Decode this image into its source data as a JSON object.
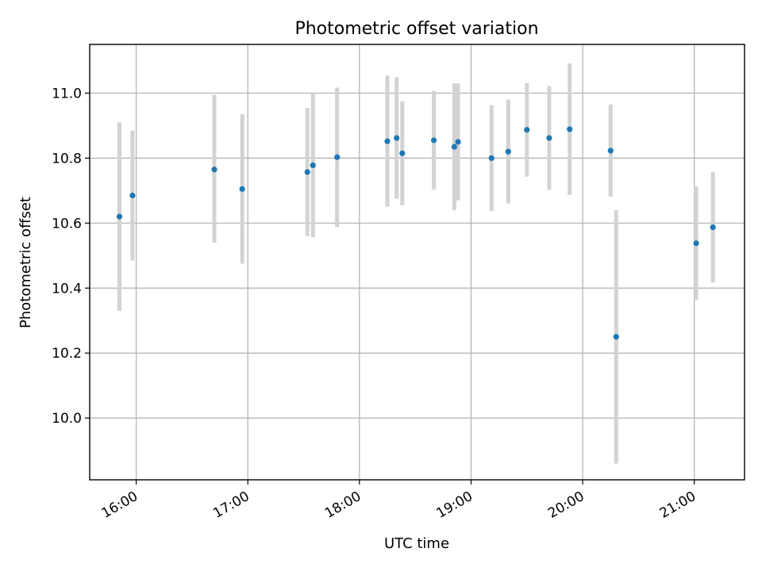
{
  "chart_data": {
    "type": "scatter",
    "title": "Photometric offset variation",
    "xlabel": "UTC time",
    "ylabel": "Photometric offset",
    "x_ticks": [
      "16:00",
      "17:00",
      "18:00",
      "19:00",
      "20:00",
      "21:00"
    ],
    "y_ticks": [
      "10.0",
      "10.2",
      "10.4",
      "10.6",
      "10.8",
      "11.0"
    ],
    "xlim": [
      "15:35",
      "21:27"
    ],
    "ylim": [
      9.81,
      11.15
    ],
    "grid": true,
    "colors": {
      "marker": "#1f77b4",
      "errorbar": "#d3d3d3"
    },
    "series": [
      {
        "points": [
          {
            "x": "15:51",
            "y": 10.62,
            "err_low": 10.33,
            "err_high": 10.91
          },
          {
            "x": "15:58",
            "y": 10.685,
            "err_low": 10.485,
            "err_high": 10.885
          },
          {
            "x": "16:42",
            "y": 10.765,
            "err_low": 10.54,
            "err_high": 10.995
          },
          {
            "x": "16:57",
            "y": 10.705,
            "err_low": 10.475,
            "err_high": 10.935
          },
          {
            "x": "17:32",
            "y": 10.757,
            "err_low": 10.56,
            "err_high": 10.955
          },
          {
            "x": "17:35",
            "y": 10.778,
            "err_low": 10.557,
            "err_high": 11.0
          },
          {
            "x": "17:48",
            "y": 10.803,
            "err_low": 10.588,
            "err_high": 11.017
          },
          {
            "x": "18:15",
            "y": 10.852,
            "err_low": 10.65,
            "err_high": 11.054
          },
          {
            "x": "18:20",
            "y": 10.862,
            "err_low": 10.675,
            "err_high": 11.049
          },
          {
            "x": "18:23",
            "y": 10.815,
            "err_low": 10.655,
            "err_high": 10.975
          },
          {
            "x": "18:40",
            "y": 10.855,
            "err_low": 10.703,
            "err_high": 11.007
          },
          {
            "x": "18:51",
            "y": 10.835,
            "err_low": 10.64,
            "err_high": 11.03
          },
          {
            "x": "18:53",
            "y": 10.85,
            "err_low": 10.67,
            "err_high": 11.03
          },
          {
            "x": "19:11",
            "y": 10.8,
            "err_low": 10.637,
            "err_high": 10.963
          },
          {
            "x": "19:20",
            "y": 10.82,
            "err_low": 10.66,
            "err_high": 10.98
          },
          {
            "x": "19:30",
            "y": 10.887,
            "err_low": 10.743,
            "err_high": 11.031
          },
          {
            "x": "19:42",
            "y": 10.862,
            "err_low": 10.702,
            "err_high": 11.022
          },
          {
            "x": "19:53",
            "y": 10.889,
            "err_low": 10.687,
            "err_high": 11.091
          },
          {
            "x": "20:15",
            "y": 10.823,
            "err_low": 10.681,
            "err_high": 10.965
          },
          {
            "x": "20:18",
            "y": 10.25,
            "err_low": 9.86,
            "err_high": 10.64
          },
          {
            "x": "21:01",
            "y": 10.538,
            "err_low": 10.363,
            "err_high": 10.713
          },
          {
            "x": "21:10",
            "y": 10.587,
            "err_low": 10.417,
            "err_high": 10.757
          }
        ]
      }
    ]
  }
}
